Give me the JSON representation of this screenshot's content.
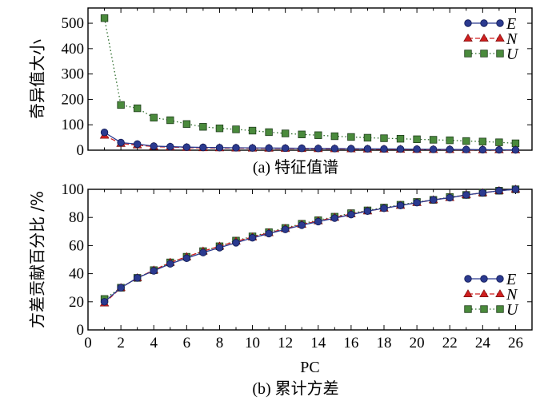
{
  "chart_data": [
    {
      "type": "line",
      "panel": "a",
      "caption": "(a) 特征值谱",
      "ylabel": "奇异值大小",
      "xlabel": "",
      "x": [
        1,
        2,
        3,
        4,
        5,
        6,
        7,
        8,
        9,
        10,
        11,
        12,
        13,
        14,
        15,
        16,
        17,
        18,
        19,
        20,
        21,
        22,
        23,
        24,
        25,
        26
      ],
      "xlim": [
        0,
        27
      ],
      "ylim": [
        0,
        560
      ],
      "yticks": [
        0,
        100,
        200,
        300,
        400,
        500
      ],
      "show_xtick_labels": false,
      "grid": false,
      "legend_position": "top-right",
      "series": [
        {
          "name": "E",
          "color": "#2b3a8f",
          "marker": "circle",
          "line": "solid",
          "values": [
            70,
            30,
            24,
            16,
            14,
            12,
            11,
            10,
            9.5,
            9,
            8.5,
            8,
            7.5,
            7,
            6.5,
            6,
            5.5,
            5,
            4.5,
            4,
            3.5,
            3,
            2.5,
            2,
            1.5,
            1
          ]
        },
        {
          "name": "N",
          "color": "#d02020",
          "marker": "triangle",
          "line": "dashed",
          "values": [
            58,
            26,
            20,
            14,
            12,
            10,
            9,
            8.5,
            8,
            7.5,
            7,
            6.5,
            6,
            5.5,
            5,
            4.5,
            4,
            3.5,
            3,
            2.5,
            2,
            1.8,
            1.5,
            1.2,
            1,
            0.8
          ]
        },
        {
          "name": "U",
          "color": "#2a6a28",
          "fill": "#4a8a3c",
          "marker": "square",
          "line": "dotted",
          "values": [
            520,
            178,
            165,
            128,
            118,
            103,
            92,
            86,
            82,
            77,
            71,
            66,
            62,
            59,
            55,
            52,
            49,
            47,
            45,
            43,
            41,
            39,
            36,
            34,
            31,
            27
          ]
        }
      ]
    },
    {
      "type": "line",
      "panel": "b",
      "caption": "(b) 累计方差",
      "ylabel": "方差贡献百分比 /%",
      "xlabel": "PC",
      "x": [
        1,
        2,
        3,
        4,
        5,
        6,
        7,
        8,
        9,
        10,
        11,
        12,
        13,
        14,
        15,
        16,
        17,
        18,
        19,
        20,
        21,
        22,
        23,
        24,
        25,
        26
      ],
      "xlim": [
        0,
        27
      ],
      "ylim": [
        0,
        100
      ],
      "xticks": [
        0,
        2,
        4,
        6,
        8,
        10,
        12,
        14,
        16,
        18,
        20,
        22,
        24,
        26
      ],
      "yticks": [
        0,
        20,
        40,
        60,
        80,
        100
      ],
      "grid": false,
      "legend_position": "bottom-right",
      "series": [
        {
          "name": "E",
          "color": "#2b3a8f",
          "marker": "circle",
          "line": "solid",
          "values": [
            20,
            30,
            37,
            42,
            47,
            51,
            55,
            58.5,
            62,
            65.5,
            68.5,
            71.5,
            74.5,
            77,
            79.5,
            82,
            84.5,
            86.5,
            88.5,
            90.5,
            92.5,
            94,
            96,
            97.5,
            99,
            100
          ]
        },
        {
          "name": "N",
          "color": "#d02020",
          "marker": "triangle",
          "line": "dashed",
          "values": [
            19,
            30,
            37,
            42.5,
            48,
            52,
            56,
            59.5,
            63,
            66,
            69,
            72,
            75,
            77.5,
            80,
            82.5,
            84.5,
            86.5,
            88.5,
            90.5,
            92.5,
            94,
            96,
            97.5,
            99,
            100
          ]
        },
        {
          "name": "U",
          "color": "#2a6a28",
          "fill": "#4a8a3c",
          "marker": "square",
          "line": "dotted",
          "values": [
            22,
            30,
            37,
            42.5,
            48,
            52,
            56,
            59.5,
            63.5,
            66.5,
            69.5,
            72.5,
            75.5,
            78,
            80.5,
            83,
            85,
            87,
            89,
            91,
            92.5,
            94.5,
            96,
            97.5,
            99,
            100
          ]
        }
      ]
    }
  ]
}
